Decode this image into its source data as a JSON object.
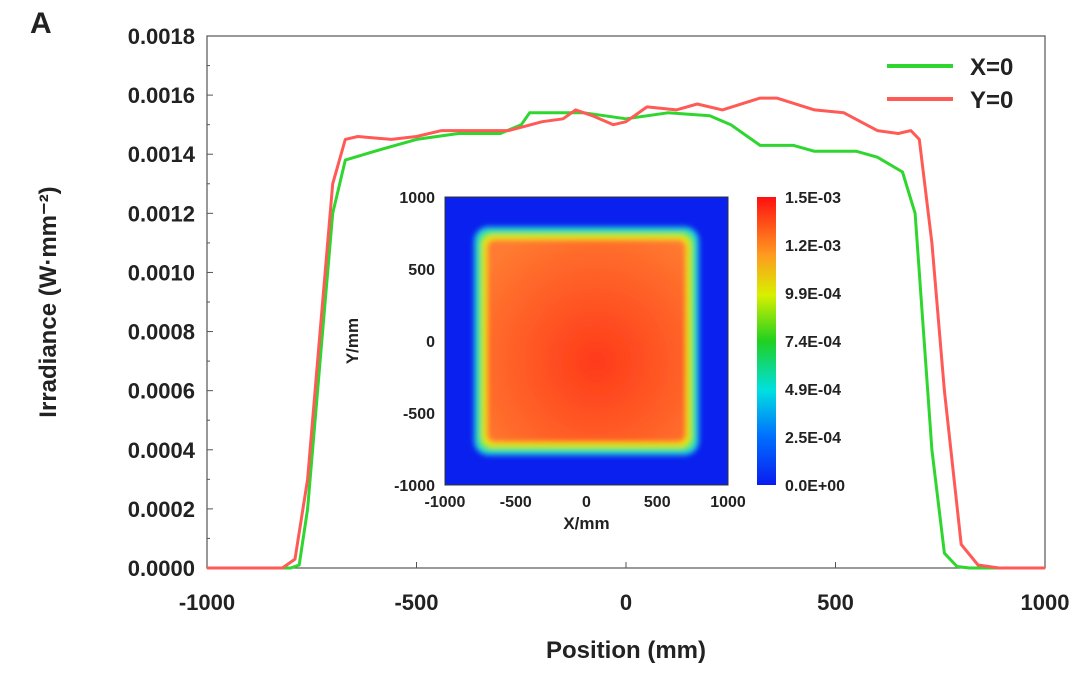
{
  "panel_label": "A",
  "chart_data": {
    "type": "line",
    "xlabel": "Position (mm)",
    "ylabel": "Irradiance (W·mm⁻²)",
    "xlim": [
      -1000,
      1000
    ],
    "ylim": [
      0,
      0.0018
    ],
    "xticks": [
      "-1000",
      "-500",
      "0",
      "500",
      "1000"
    ],
    "xtick_values": [
      -1000,
      -500,
      0,
      500,
      1000
    ],
    "yticks": [
      "0.0000",
      "0.0002",
      "0.0004",
      "0.0006",
      "0.0008",
      "0.0010",
      "0.0012",
      "0.0014",
      "0.0016",
      "0.0018"
    ],
    "ytick_values": [
      0,
      0.0002,
      0.0004,
      0.0006,
      0.0008,
      0.001,
      0.0012,
      0.0014,
      0.0016,
      0.0018
    ],
    "legend_position": "top-right",
    "series": [
      {
        "name": "X=0",
        "color": "#2fd62f",
        "points": [
          [
            -1000,
            0
          ],
          [
            -800,
            0
          ],
          [
            -780,
            1e-05
          ],
          [
            -760,
            0.0002
          ],
          [
            -730,
            0.0007
          ],
          [
            -700,
            0.0012
          ],
          [
            -670,
            0.00138
          ],
          [
            -600,
            0.00141
          ],
          [
            -500,
            0.00145
          ],
          [
            -400,
            0.00147
          ],
          [
            -300,
            0.00147
          ],
          [
            -250,
            0.0015
          ],
          [
            -230,
            0.00154
          ],
          [
            -100,
            0.00154
          ],
          [
            0,
            0.00152
          ],
          [
            100,
            0.00154
          ],
          [
            200,
            0.00153
          ],
          [
            250,
            0.0015
          ],
          [
            320,
            0.00143
          ],
          [
            400,
            0.00143
          ],
          [
            450,
            0.00141
          ],
          [
            550,
            0.00141
          ],
          [
            600,
            0.00139
          ],
          [
            660,
            0.00134
          ],
          [
            690,
            0.0012
          ],
          [
            710,
            0.0008
          ],
          [
            730,
            0.0004
          ],
          [
            760,
            5e-05
          ],
          [
            790,
            5e-06
          ],
          [
            820,
            0
          ],
          [
            1000,
            0
          ]
        ]
      },
      {
        "name": "Y=0",
        "color": "#ff5a55",
        "points": [
          [
            -1000,
            0
          ],
          [
            -820,
            0
          ],
          [
            -790,
            3e-05
          ],
          [
            -760,
            0.0003
          ],
          [
            -730,
            0.0008
          ],
          [
            -700,
            0.0013
          ],
          [
            -670,
            0.00145
          ],
          [
            -640,
            0.00146
          ],
          [
            -560,
            0.00145
          ],
          [
            -500,
            0.00146
          ],
          [
            -440,
            0.00148
          ],
          [
            -340,
            0.00148
          ],
          [
            -280,
            0.00148
          ],
          [
            -200,
            0.00151
          ],
          [
            -150,
            0.00152
          ],
          [
            -120,
            0.00155
          ],
          [
            -80,
            0.00153
          ],
          [
            -30,
            0.0015
          ],
          [
            0,
            0.00151
          ],
          [
            50,
            0.00156
          ],
          [
            120,
            0.00155
          ],
          [
            170,
            0.00157
          ],
          [
            230,
            0.00155
          ],
          [
            320,
            0.00159
          ],
          [
            360,
            0.00159
          ],
          [
            450,
            0.00155
          ],
          [
            520,
            0.00154
          ],
          [
            600,
            0.00148
          ],
          [
            650,
            0.00147
          ],
          [
            680,
            0.00148
          ],
          [
            700,
            0.00145
          ],
          [
            730,
            0.0011
          ],
          [
            760,
            0.0006
          ],
          [
            800,
            8e-05
          ],
          [
            840,
            1e-05
          ],
          [
            890,
            0
          ],
          [
            1000,
            0
          ]
        ]
      }
    ],
    "inset": {
      "type": "heatmap",
      "xlabel": "X/mm",
      "ylabel": "Y/mm",
      "xlim": [
        -1000,
        1000
      ],
      "ylim": [
        -1000,
        1000
      ],
      "xticks": [
        "-1000",
        "-500",
        "0",
        "500",
        "1000"
      ],
      "yticks": [
        "1000",
        "500",
        "0",
        "-500",
        "-1000"
      ],
      "square_extent": [
        -750,
        750
      ],
      "colorbar_ticks": [
        "1.5E-03",
        "1.2E-03",
        "9.9E-04",
        "7.4E-04",
        "4.9E-04",
        "2.5E-04",
        "0.0E+00"
      ],
      "colorbar_range": [
        0,
        0.0015
      ]
    }
  }
}
